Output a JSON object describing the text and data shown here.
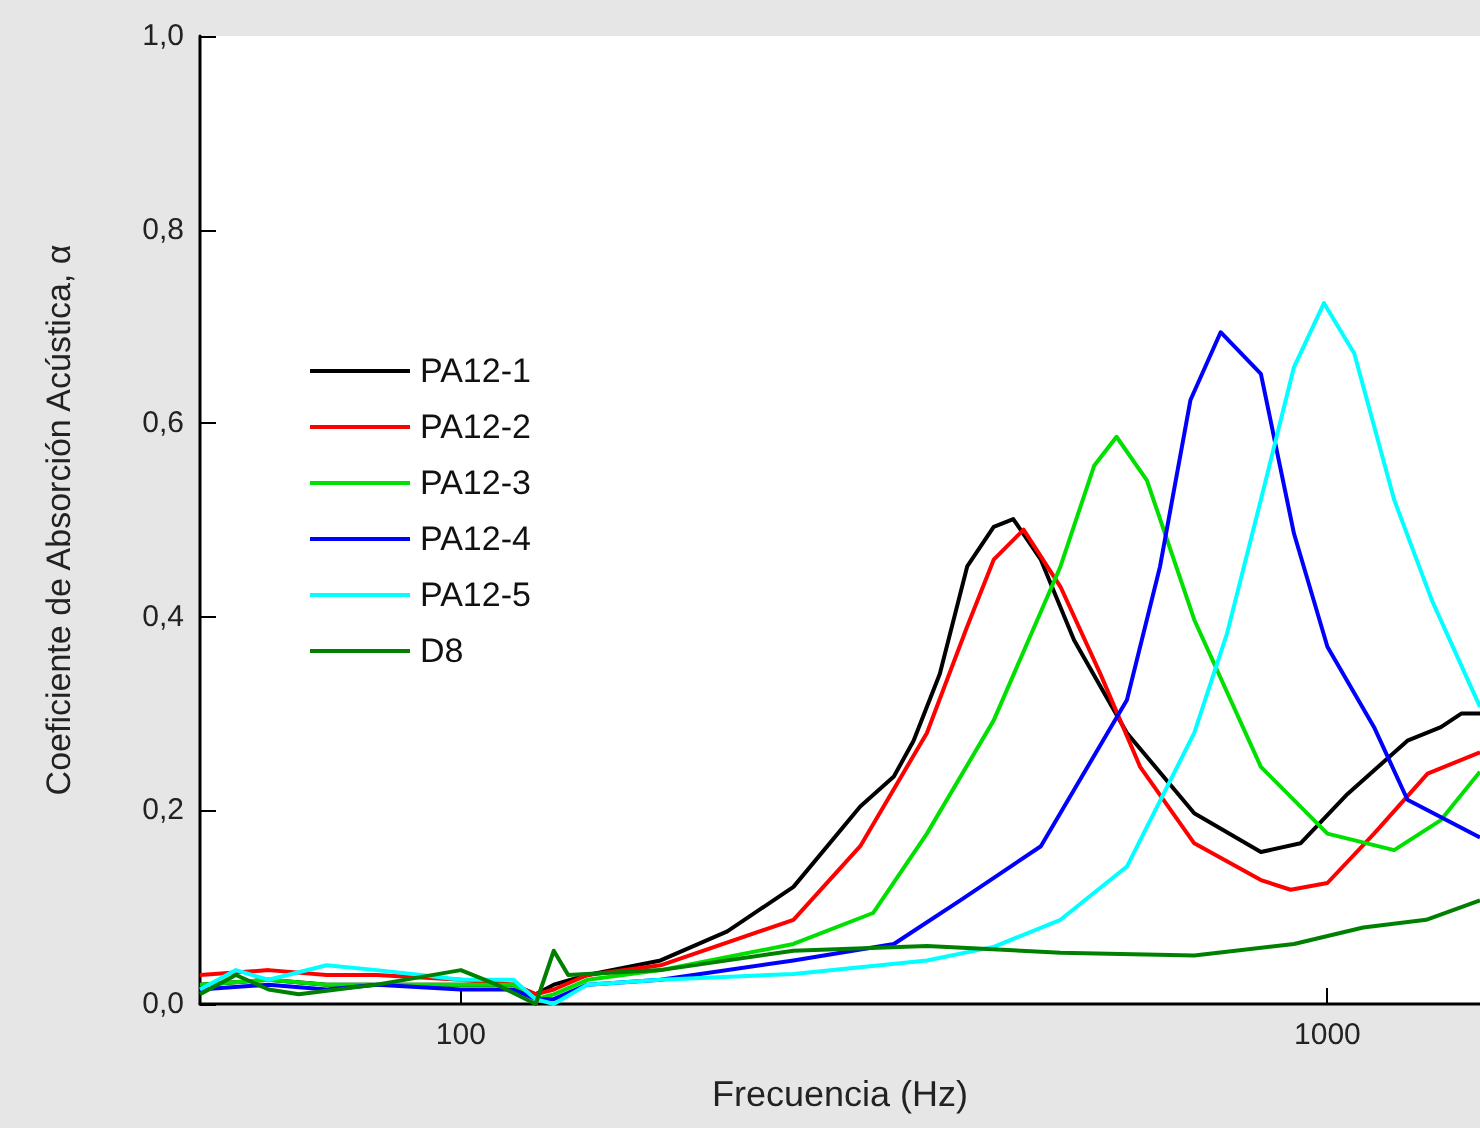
{
  "chart_data": {
    "type": "line",
    "xlabel": "Frecuencia (Hz)",
    "ylabel": "Coeficiente de Absorción Acústica, α",
    "log": "x",
    "xlim": [
      50,
      1500
    ],
    "xticks": [
      100,
      1000
    ],
    "ylim": [
      0,
      1
    ],
    "yticks": [
      {
        "value": 0,
        "label": "0,0"
      },
      {
        "value": 0.2,
        "label": "0,2"
      },
      {
        "value": 0.4,
        "label": "0,4"
      },
      {
        "value": 0.6,
        "label": "0,6"
      },
      {
        "value": 0.8,
        "label": "0,8"
      },
      {
        "value": 1,
        "label": "1,0"
      }
    ],
    "grid": false,
    "legend": "left",
    "marker": "none",
    "line_style": "solid",
    "series": [
      {
        "name": "PA12-1",
        "color": "#000000",
        "x": [
          50,
          60,
          70,
          80,
          100,
          115,
          122,
          128,
          140,
          170,
          203,
          242,
          289,
          316,
          333,
          357,
          384,
          412,
          434,
          467,
          510,
          587,
          702,
          838,
          931,
          1055,
          1237,
          1352,
          1427,
          1500
        ],
        "values": [
          0.02,
          0.025,
          0.02,
          0.02,
          0.02,
          0.02,
          0.01,
          0.02,
          0.03,
          0.045,
          0.075,
          0.121,
          0.204,
          0.235,
          0.272,
          0.341,
          0.452,
          0.493,
          0.501,
          0.459,
          0.376,
          0.28,
          0.197,
          0.157,
          0.166,
          0.217,
          0.272,
          0.286,
          0.3,
          0.3
        ]
      },
      {
        "name": "PA12-2",
        "color": "#ff0000",
        "x": [
          50,
          60,
          70,
          80,
          100,
          115,
          122,
          128,
          140,
          170,
          242,
          289,
          345,
          384,
          412,
          446,
          492,
          547,
          608,
          702,
          838,
          907,
          1000,
          1132,
          1305,
          1500
        ],
        "values": [
          0.03,
          0.035,
          0.03,
          0.03,
          0.025,
          0.02,
          0.01,
          0.015,
          0.03,
          0.04,
          0.087,
          0.163,
          0.28,
          0.39,
          0.459,
          0.49,
          0.431,
          0.341,
          0.245,
          0.166,
          0.128,
          0.118,
          0.125,
          0.176,
          0.238,
          0.26
        ]
      },
      {
        "name": "PA12-3",
        "color": "#00e000",
        "x": [
          50,
          60,
          70,
          80,
          100,
          115,
          122,
          128,
          140,
          170,
          242,
          299,
          345,
          412,
          492,
          538,
          571,
          619,
          702,
          838,
          1000,
          1194,
          1352,
          1500
        ],
        "values": [
          0.02,
          0.025,
          0.02,
          0.02,
          0.02,
          0.02,
          0.005,
          0.01,
          0.025,
          0.035,
          0.062,
          0.094,
          0.176,
          0.293,
          0.452,
          0.556,
          0.586,
          0.541,
          0.397,
          0.245,
          0.176,
          0.159,
          0.19,
          0.24
        ]
      },
      {
        "name": "PA12-4",
        "color": "#0000ff",
        "x": [
          50,
          60,
          70,
          80,
          100,
          115,
          122,
          128,
          140,
          170,
          242,
          316,
          377,
          467,
          587,
          641,
          695,
          753,
          838,
          915,
          1000,
          1132,
          1237,
          1500
        ],
        "values": [
          0.015,
          0.02,
          0.015,
          0.02,
          0.015,
          0.015,
          0.005,
          0.005,
          0.02,
          0.025,
          0.045,
          0.062,
          0.107,
          0.163,
          0.314,
          0.452,
          0.624,
          0.694,
          0.651,
          0.486,
          0.369,
          0.286,
          0.211,
          0.172
        ]
      },
      {
        "name": "PA12-5",
        "color": "#00ffff",
        "x": [
          50,
          55,
          60,
          70,
          80,
          90,
          100,
          115,
          122,
          128,
          140,
          170,
          242,
          345,
          412,
          492,
          587,
          702,
          766,
          838,
          915,
          991,
          1074,
          1194,
          1320,
          1500
        ],
        "values": [
          0.015,
          0.035,
          0.025,
          0.04,
          0.035,
          0.03,
          0.025,
          0.025,
          0.005,
          0.0,
          0.02,
          0.025,
          0.031,
          0.045,
          0.059,
          0.087,
          0.142,
          0.28,
          0.383,
          0.521,
          0.658,
          0.724,
          0.672,
          0.521,
          0.417,
          0.307
        ]
      },
      {
        "name": "D8",
        "color": "#008000",
        "x": [
          50,
          55,
          60,
          65,
          80,
          100,
          110,
          122,
          128,
          133,
          170,
          242,
          345,
          492,
          702,
          915,
          1100,
          1300,
          1500
        ],
        "values": [
          0.01,
          0.03,
          0.015,
          0.01,
          0.02,
          0.035,
          0.02,
          0.0,
          0.055,
          0.03,
          0.035,
          0.055,
          0.06,
          0.053,
          0.05,
          0.062,
          0.079,
          0.087,
          0.107
        ]
      }
    ]
  }
}
